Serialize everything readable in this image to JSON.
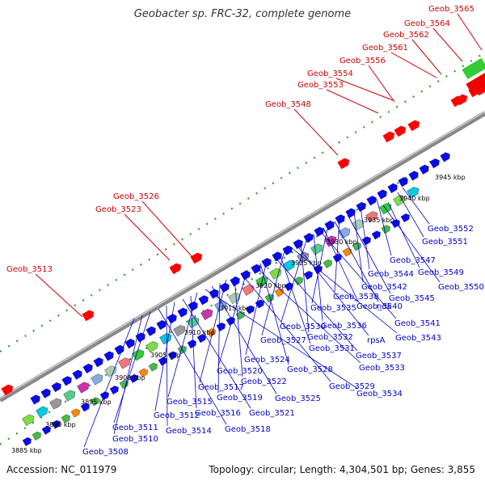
{
  "title": "Geobacter sp. FRC-32, complete genome",
  "accession": "Accession: NC_011979",
  "topology": "Topology: circular; Length: 4,304,501 bp; Genes: 3,855",
  "colors": {
    "backbone": "#999999",
    "ticks": "#339933",
    "forward_gene": "#ff0000",
    "reverse_gene": "#0000ee",
    "blue_label": "#0000cc",
    "red_label": "#cc0000"
  },
  "scale_labels": [
    "3885 kbp",
    "3890 kbp",
    "3895 kbp",
    "3900 kbp",
    "3905 kbp",
    "3910 kbp",
    "3915 kbp",
    "3920 kbp",
    "3925 kbp",
    "3930 kbp",
    "3935 kbp",
    "3940 kbp",
    "3945 kbp"
  ],
  "red_labels": [
    "Geob_3513",
    "Geob_3523",
    "Geob_3526",
    "Geob_3548",
    "Geob_3553",
    "Geob_3554",
    "Geob_3556",
    "Geob_3561",
    "Geob_3562",
    "Geob_3564",
    "Geob_3565"
  ],
  "blue_labels": [
    "Geob_3552",
    "Geob_3551",
    "Geob_3547",
    "Geob_3549",
    "Geob_3550",
    "Geob_3544",
    "Geob_3542",
    "Geob_3545",
    "Geob_3538",
    "ndk",
    "Geob_3535",
    "Geob_3540",
    "Geob_3541",
    "Geob_3536",
    "Geob_3530",
    "Geob_3532",
    "rpsA",
    "Geob_3543",
    "Geob_3527",
    "Geob_3531",
    "Geob_3537",
    "Geob_3524",
    "Geob_3528",
    "Geob_3533",
    "Geob_3520",
    "Geob_3529",
    "Geob_3522",
    "Geob_3517",
    "Geob_3519",
    "Geob_3525",
    "Geob_3534",
    "Geob_3515",
    "Geob_3516",
    "Geob_3521",
    "Geob_3512",
    "Geob_3514",
    "Geob_3518",
    "Geob_3511",
    "Geob_3510",
    "Geob_3508"
  ]
}
